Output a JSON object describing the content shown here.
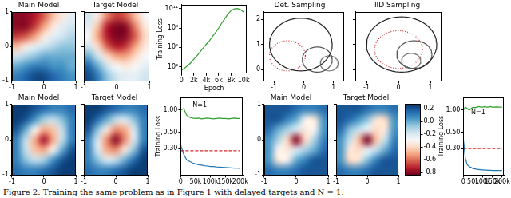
{
  "caption": "Figure 2: Training the same problem as in Figure 1 with delayed targets and N = 1.",
  "chart_data": [
    {
      "type": "heatmap",
      "title": "Main Model",
      "xlim": [
        -1,
        1
      ],
      "ylim": [
        -1,
        1
      ],
      "xticks": [
        -1,
        0,
        1
      ],
      "yticks": [
        -1,
        0,
        1
      ],
      "zlim": [
        -1,
        1
      ],
      "cells": [
        [
          -0.9,
          -0.9,
          -0.8,
          -0.6,
          -0.3,
          -0.1,
          0.1
        ],
        [
          -0.9,
          -0.9,
          -0.7,
          -0.4,
          -0.1,
          0.1,
          0.2
        ],
        [
          -0.7,
          -0.6,
          -0.4,
          -0.1,
          0.1,
          0.2,
          0.3
        ],
        [
          -0.3,
          -0.1,
          0.1,
          0.2,
          0.3,
          0.4,
          0.4
        ],
        [
          0.2,
          0.3,
          0.4,
          0.5,
          0.5,
          0.5,
          0.5
        ],
        [
          0.5,
          0.6,
          0.7,
          0.7,
          0.6,
          0.6,
          0.5
        ],
        [
          0.7,
          0.8,
          0.9,
          0.9,
          0.8,
          0.7,
          0.6
        ]
      ]
    },
    {
      "type": "heatmap",
      "title": "Target Model",
      "xlim": [
        -1,
        1
      ],
      "ylim": [
        -1,
        1
      ],
      "xticks": [
        -1,
        0,
        1
      ],
      "yticks": [
        -1,
        0,
        1
      ],
      "zlim": [
        -1,
        1
      ],
      "tick_labels": "x",
      "cells": [
        [
          0.2,
          -0.1,
          -0.5,
          -0.7,
          -0.6,
          -0.3,
          0.0
        ],
        [
          0.1,
          -0.3,
          -0.8,
          -0.95,
          -0.9,
          -0.5,
          -0.1
        ],
        [
          0.0,
          -0.4,
          -0.8,
          -0.95,
          -0.9,
          -0.6,
          -0.2
        ],
        [
          0.2,
          -0.2,
          -0.6,
          -0.8,
          -0.7,
          -0.4,
          -0.1
        ],
        [
          0.5,
          0.2,
          -0.2,
          -0.4,
          -0.4,
          -0.2,
          0.0
        ],
        [
          0.8,
          0.5,
          0.2,
          0.0,
          -0.1,
          0.0,
          0.1
        ],
        [
          0.9,
          0.7,
          0.4,
          0.2,
          0.1,
          0.1,
          0.2
        ]
      ]
    },
    {
      "type": "line",
      "log": "y",
      "x_label": "Epoch",
      "y_label": "Training Loss",
      "xlim": [
        0,
        10500
      ],
      "xticks": [
        0,
        {
          "value": 2000,
          "label": "2k"
        },
        {
          "value": 4000,
          "label": "4k"
        },
        {
          "value": 6000,
          "label": "6k"
        },
        {
          "value": 8000,
          "label": "8k"
        },
        {
          "value": 10000,
          "label": "10k"
        }
      ],
      "ylim": [
        10,
        400000000000
      ],
      "yticks": [
        {
          "value": 100,
          "label": "10²"
        },
        {
          "value": 100000,
          "label": "10⁵"
        },
        {
          "value": 100000000,
          "label": "10⁸"
        },
        {
          "value": 100000000000,
          "label": "10¹¹"
        }
      ],
      "x": [
        0,
        500,
        1000,
        1500,
        2000,
        2500,
        3000,
        3500,
        4000,
        4500,
        5000,
        5500,
        6000,
        6500,
        7000,
        7500,
        8000,
        8500,
        9000,
        9500,
        10000
      ],
      "series": [
        {
          "color": "#2ca02c",
          "line_style": "solid",
          "values": [
            30,
            60,
            150,
            400,
            1500,
            5000,
            20000,
            80000,
            300000,
            1000000,
            5000000,
            20000000,
            100000000,
            600000000,
            3000000000,
            15000000000,
            50000000000,
            90000000000,
            100000000000,
            70000000000,
            30000000000
          ]
        }
      ]
    },
    {
      "type": "circles",
      "title": "Det. Sampling",
      "xlim": [
        -1.35,
        1.35
      ],
      "ylim": [
        -0.45,
        2.3
      ],
      "xticks": [
        -1,
        0,
        1
      ],
      "yticks": [
        0,
        1,
        2
      ],
      "circles": [
        {
          "center": [
            -0.1,
            1.0
          ],
          "radius": 1.05,
          "color": "#222222",
          "line_style": "solid"
        },
        {
          "center": [
            -0.55,
            0.55
          ],
          "radius": 0.6,
          "color": "#d62728",
          "line_style": "dotted"
        },
        {
          "center": [
            0.45,
            0.4
          ],
          "radius": 0.5,
          "color": "#555555",
          "line_style": "solid"
        },
        {
          "center": [
            0.85,
            0.25
          ],
          "radius": 0.3,
          "color": "#777777",
          "line_style": "solid"
        }
      ]
    },
    {
      "type": "circles",
      "title": "IID Sampling",
      "xlim": [
        -1.35,
        1.35
      ],
      "ylim": [
        -0.45,
        2.3
      ],
      "xticks": [
        -1,
        0,
        1
      ],
      "yticks": [
        0,
        1,
        2
      ],
      "tick_labels": "x",
      "circles": [
        {
          "center": [
            0.1,
            1.0
          ],
          "radius": 1.1,
          "color": "#222222",
          "line_style": "solid"
        },
        {
          "center": [
            0.0,
            0.8
          ],
          "radius": 0.75,
          "color": "#d62728",
          "line_style": "dotted"
        },
        {
          "center": [
            0.5,
            0.6
          ],
          "radius": 0.55,
          "color": "#555555",
          "line_style": "solid"
        },
        {
          "center": [
            0.4,
            0.35
          ],
          "radius": 0.3,
          "color": "#777777",
          "line_style": "solid"
        }
      ]
    },
    {
      "type": "heatmap",
      "title": "Main Model",
      "xlim": [
        -1,
        1
      ],
      "ylim": [
        -1,
        1
      ],
      "xticks": [
        -1,
        0,
        1
      ],
      "yticks": [
        -1,
        0,
        1
      ],
      "zlim": [
        -0.85,
        0.28
      ],
      "cells": [
        [
          0.25,
          0.25,
          0.2,
          0.15,
          0.1,
          0.1,
          0.15
        ],
        [
          0.25,
          0.2,
          0.05,
          -0.1,
          -0.15,
          -0.05,
          0.1
        ],
        [
          0.2,
          0.0,
          -0.3,
          -0.5,
          -0.45,
          -0.15,
          0.1
        ],
        [
          0.1,
          -0.15,
          -0.5,
          -0.75,
          -0.5,
          -0.15,
          0.1
        ],
        [
          0.1,
          -0.15,
          -0.45,
          -0.5,
          -0.3,
          0.0,
          0.2
        ],
        [
          0.1,
          -0.05,
          -0.15,
          -0.1,
          0.05,
          0.2,
          0.25
        ],
        [
          0.15,
          0.1,
          0.1,
          0.15,
          0.2,
          0.25,
          0.25
        ]
      ]
    },
    {
      "type": "heatmap",
      "title": "Target Model",
      "xlim": [
        -1,
        1
      ],
      "ylim": [
        -1,
        1
      ],
      "xticks": [
        -1,
        0,
        1
      ],
      "yticks": [
        -1,
        0,
        1
      ],
      "zlim": [
        -0.85,
        0.28
      ],
      "tick_labels": "x",
      "cells": [
        [
          0.25,
          0.25,
          0.2,
          0.15,
          0.1,
          0.1,
          0.15
        ],
        [
          0.25,
          0.15,
          0.0,
          -0.15,
          -0.2,
          -0.05,
          0.1
        ],
        [
          0.2,
          -0.05,
          -0.35,
          -0.55,
          -0.5,
          -0.2,
          0.1
        ],
        [
          0.1,
          -0.2,
          -0.55,
          -0.8,
          -0.55,
          -0.2,
          0.1
        ],
        [
          0.1,
          -0.2,
          -0.5,
          -0.55,
          -0.35,
          -0.05,
          0.2
        ],
        [
          0.1,
          -0.05,
          -0.2,
          -0.15,
          0.0,
          0.15,
          0.25
        ],
        [
          0.15,
          0.1,
          0.1,
          0.15,
          0.2,
          0.25,
          0.25
        ]
      ]
    },
    {
      "type": "line",
      "log": "y",
      "y_label": "Training Loss",
      "xlim": [
        0,
        210000
      ],
      "xticks": [
        0,
        {
          "value": 50000,
          "label": "50k"
        },
        {
          "value": 100000,
          "label": "100k"
        },
        {
          "value": 150000,
          "label": "150k"
        },
        {
          "value": 200000,
          "label": "200k"
        }
      ],
      "ylim": [
        0.13,
        1.5
      ],
      "yticks": [
        {
          "value": 0.3,
          "label": "0.30"
        },
        {
          "value": 0.5,
          "label": "0.50"
        },
        {
          "value": 1,
          "label": "1.00"
        }
      ],
      "x": [
        0,
        10000,
        20000,
        30000,
        40000,
        50000,
        60000,
        70000,
        80000,
        90000,
        100000,
        110000,
        120000,
        130000,
        140000,
        150000,
        160000,
        170000,
        180000,
        190000,
        200000
      ],
      "annotations": [
        {
          "text": "N=1",
          "x": 40000,
          "y": 1.05
        }
      ],
      "series": [
        {
          "color": "#2ca02c",
          "line_style": "solid",
          "values": [
            1.0,
            1.05,
            0.85,
            0.8,
            0.78,
            0.77,
            0.78,
            0.76,
            0.77,
            0.78,
            0.77,
            0.76,
            0.77,
            0.78,
            0.77,
            0.77,
            0.76,
            0.77,
            0.78,
            0.77,
            0.77
          ]
        },
        {
          "color": "#d62728",
          "line_style": "dashed",
          "values": [
            0.28,
            0.28,
            0.28,
            0.28,
            0.28,
            0.28,
            0.28,
            0.28,
            0.28,
            0.28,
            0.28,
            0.28,
            0.28,
            0.28,
            0.28,
            0.28,
            0.28,
            0.28,
            0.28,
            0.28,
            0.28
          ]
        },
        {
          "color": "#1f77b4",
          "line_style": "solid",
          "values": [
            0.33,
            0.25,
            0.21,
            0.2,
            0.19,
            0.185,
            0.18,
            0.178,
            0.175,
            0.173,
            0.17,
            0.17,
            0.168,
            0.167,
            0.166,
            0.165,
            0.164,
            0.163,
            0.162,
            0.162,
            0.161
          ]
        }
      ]
    },
    {
      "type": "heatmap",
      "title": "Main Model",
      "xlim": [
        -1,
        1
      ],
      "ylim": [
        -1,
        1
      ],
      "xticks": [
        -1,
        0,
        1
      ],
      "yticks": [
        -1,
        0,
        1
      ],
      "zlim": [
        -0.85,
        0.28
      ],
      "cells": [
        [
          0.2,
          0.2,
          0.2,
          0.15,
          0.1,
          0.1,
          0.15
        ],
        [
          0.2,
          0.2,
          0.1,
          0.0,
          -0.3,
          -0.35,
          0.05
        ],
        [
          0.15,
          0.0,
          -0.1,
          -0.2,
          -0.35,
          -0.3,
          0.05
        ],
        [
          0.05,
          -0.1,
          -0.4,
          -0.8,
          -0.4,
          -0.1,
          0.1
        ],
        [
          0.05,
          -0.3,
          -0.35,
          -0.2,
          -0.1,
          0.0,
          0.15
        ],
        [
          0.05,
          -0.35,
          -0.3,
          0.0,
          0.1,
          0.2,
          0.2
        ],
        [
          0.15,
          0.1,
          0.1,
          0.15,
          0.2,
          0.2,
          0.2
        ]
      ]
    },
    {
      "type": "heatmap",
      "title": "Target Model",
      "xlim": [
        -1,
        1
      ],
      "ylim": [
        -1,
        1
      ],
      "xticks": [
        -1,
        0,
        1
      ],
      "yticks": [
        -1,
        0,
        1
      ],
      "zlim": [
        -0.85,
        0.28
      ],
      "tick_labels": "x",
      "colorbar": {
        "ticks": [
          -0.8,
          -0.6,
          -0.4,
          -0.2,
          {
            "value": 0,
            "label": "0.0"
          },
          0.2
        ]
      },
      "cells": [
        [
          0.2,
          0.2,
          0.2,
          0.15,
          0.1,
          0.1,
          0.15
        ],
        [
          0.2,
          0.15,
          0.05,
          -0.05,
          -0.35,
          -0.4,
          0.05
        ],
        [
          0.15,
          -0.05,
          -0.15,
          -0.25,
          -0.4,
          -0.35,
          0.05
        ],
        [
          0.05,
          -0.15,
          -0.45,
          -0.82,
          -0.45,
          -0.15,
          0.1
        ],
        [
          0.05,
          -0.35,
          -0.4,
          -0.25,
          -0.15,
          0.0,
          0.15
        ],
        [
          0.05,
          -0.4,
          -0.35,
          -0.05,
          0.1,
          0.2,
          0.2
        ],
        [
          0.15,
          0.1,
          0.1,
          0.15,
          0.2,
          0.2,
          0.2
        ]
      ]
    },
    {
      "type": "line",
      "log": "y",
      "y_label": "Training Loss",
      "xlim": [
        0,
        210000
      ],
      "xticks": [
        0,
        {
          "value": 50000,
          "label": "50k"
        },
        {
          "value": 100000,
          "label": "100k"
        },
        {
          "value": 150000,
          "label": "150k"
        },
        {
          "value": 200000,
          "label": "200k"
        }
      ],
      "ylim": [
        0.13,
        1.5
      ],
      "yticks": [
        {
          "value": 0.3,
          "label": "0.30"
        },
        {
          "value": 0.5,
          "label": "0.50"
        },
        {
          "value": 1,
          "label": "1.00"
        }
      ],
      "x": [
        0,
        10000,
        20000,
        30000,
        40000,
        50000,
        60000,
        70000,
        80000,
        90000,
        100000,
        110000,
        120000,
        130000,
        140000,
        150000,
        160000,
        170000,
        180000,
        190000,
        200000
      ],
      "annotations": [
        {
          "text": "N=1",
          "x": 40000,
          "y": 0.85
        }
      ],
      "series": [
        {
          "color": "#2ca02c",
          "line_style": "solid",
          "values": [
            1.0,
            1.1,
            1.05,
            1.0,
            1.05,
            1.1,
            1.08,
            1.1,
            1.12,
            1.1,
            1.1,
            1.12,
            1.1,
            1.1,
            1.12,
            1.1,
            1.1,
            1.11,
            1.1,
            1.1,
            1.1
          ]
        },
        {
          "color": "#d62728",
          "line_style": "dashed",
          "values": [
            0.3,
            0.3,
            0.3,
            0.3,
            0.3,
            0.3,
            0.3,
            0.3,
            0.3,
            0.3,
            0.3,
            0.3,
            0.3,
            0.3,
            0.3,
            0.3,
            0.3,
            0.3,
            0.3,
            0.3,
            0.3
          ]
        },
        {
          "color": "#1f77b4",
          "line_style": "solid",
          "values": [
            0.4,
            0.22,
            0.18,
            0.17,
            0.165,
            0.16,
            0.158,
            0.156,
            0.155,
            0.154,
            0.153,
            0.152,
            0.152,
            0.151,
            0.151,
            0.15,
            0.15,
            0.15,
            0.15,
            0.15,
            0.15
          ]
        }
      ]
    }
  ]
}
